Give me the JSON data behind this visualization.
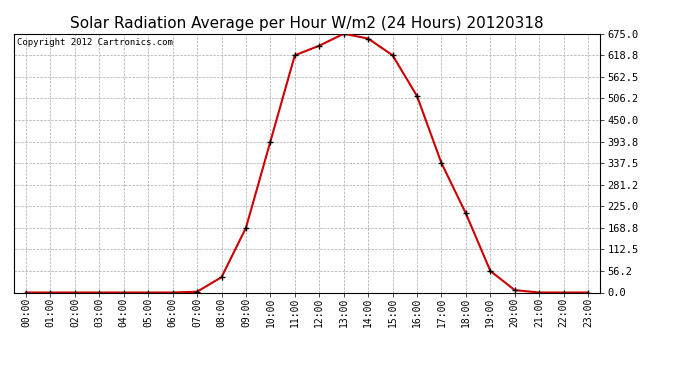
{
  "title": "Solar Radiation Average per Hour W/m2 (24 Hours) 20120318",
  "copyright": "Copyright 2012 Cartronics.com",
  "x_labels": [
    "00:00",
    "01:00",
    "02:00",
    "03:00",
    "04:00",
    "05:00",
    "06:00",
    "07:00",
    "08:00",
    "09:00",
    "10:00",
    "11:00",
    "12:00",
    "13:00",
    "14:00",
    "15:00",
    "16:00",
    "17:00",
    "18:00",
    "19:00",
    "20:00",
    "21:00",
    "22:00",
    "23:00"
  ],
  "y_values": [
    0.0,
    0.0,
    0.0,
    0.0,
    0.0,
    0.0,
    0.0,
    2.0,
    40.0,
    168.8,
    393.8,
    618.8,
    643.8,
    675.0,
    662.5,
    618.8,
    512.5,
    337.5,
    206.2,
    56.2,
    6.2,
    0.0,
    0.0,
    0.0
  ],
  "line_color": "#cc0000",
  "marker": "+",
  "marker_color": "#000000",
  "marker_size": 4,
  "marker_linewidth": 1.0,
  "background_color": "#ffffff",
  "plot_bg_color": "#ffffff",
  "grid_color": "#aaaaaa",
  "yticks": [
    0.0,
    56.2,
    112.5,
    168.8,
    225.0,
    281.2,
    337.5,
    393.8,
    450.0,
    506.2,
    562.5,
    618.8,
    675.0
  ],
  "ylim": [
    0.0,
    675.0
  ],
  "title_fontsize": 11,
  "copyright_fontsize": 6.5,
  "tick_fontsize": 7,
  "ytick_fontsize": 7.5,
  "title_color": "#000000",
  "copyright_color": "#000000",
  "line_width": 1.5
}
